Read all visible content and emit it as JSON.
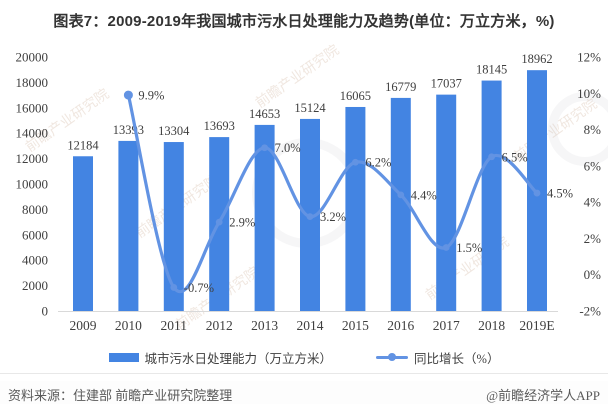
{
  "title": "图表7：2009-2019年我国城市污水日处理能力及趋势(单位：万立方米，%)",
  "legend": {
    "bar_label": "城市污水日处理能力（万立方米）",
    "line_label": "同比增长（%）"
  },
  "footer": {
    "source": "资料来源：住建部 前瞻产业研究院整理",
    "brand": "@前瞻经济学人APP"
  },
  "watermark": {
    "text": "前瞻产业研究院"
  },
  "colors": {
    "bar": "#4384E2",
    "line": "#6293E3",
    "axis": "#D9D9D9",
    "label": "#3F3F3F"
  },
  "chart_data": {
    "type": "combo",
    "title": "图表7：2009-2019年我国城市污水日处理能力及趋势(单位：万立方米，%)",
    "categories": [
      "2009",
      "2010",
      "2011",
      "2012",
      "2013",
      "2014",
      "2015",
      "2016",
      "2017",
      "2018",
      "2019E"
    ],
    "series": [
      {
        "name": "城市污水日处理能力（万立方米）",
        "type": "bar",
        "axis": "left",
        "values": [
          12184,
          13393,
          13304,
          13693,
          14653,
          15124,
          16065,
          16779,
          17037,
          18145,
          18962
        ]
      },
      {
        "name": "同比增长（%）",
        "type": "line",
        "axis": "right",
        "values": [
          null,
          9.9,
          -0.7,
          2.9,
          7.0,
          3.2,
          6.2,
          4.4,
          1.5,
          6.5,
          4.5
        ],
        "point_labels": [
          "",
          "9.9%",
          "-0.7%",
          "2.9%",
          "7.0%",
          "3.2%",
          "6.2%",
          "4.4%",
          "1.5%",
          "6.5%",
          "4.5%"
        ]
      }
    ],
    "left_axis": {
      "min": 0,
      "max": 20000,
      "step": 2000
    },
    "right_axis": {
      "min": -2,
      "max": 12,
      "step": 2,
      "suffix": "%"
    },
    "legend_position": "bottom",
    "grid": false
  }
}
